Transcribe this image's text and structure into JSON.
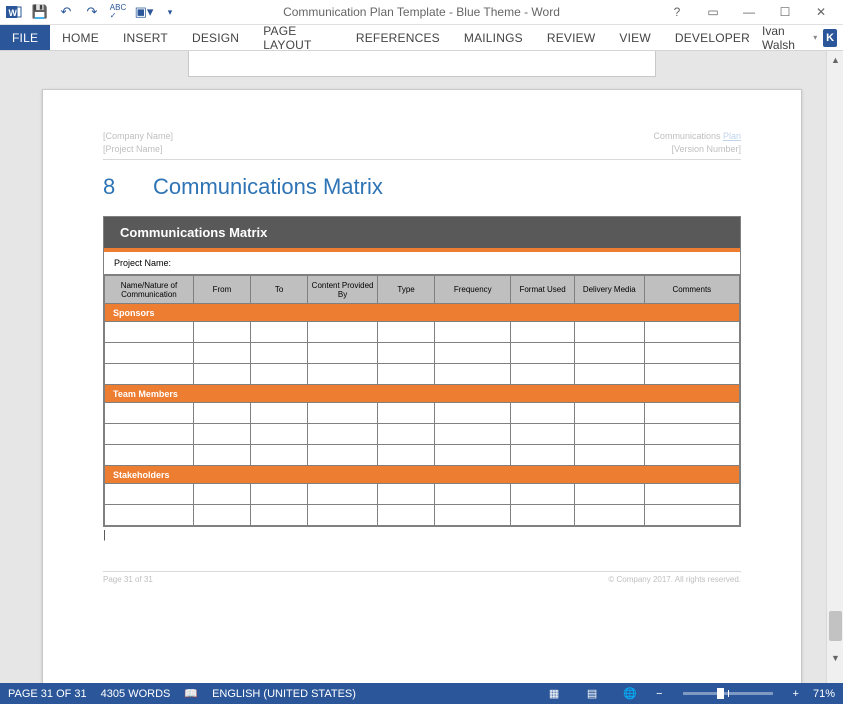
{
  "titleBar": {
    "appTitle": "Communication Plan Template - Blue Theme - Word"
  },
  "ribbonTabs": {
    "file": "FILE",
    "tabs": [
      "HOME",
      "INSERT",
      "DESIGN",
      "PAGE LAYOUT",
      "REFERENCES",
      "MAILINGS",
      "REVIEW",
      "VIEW",
      "DEVELOPER"
    ],
    "user": "Ivan Walsh",
    "userInitial": "K"
  },
  "docHeader": {
    "companyName": "[Company Name]",
    "projectName": "[Project Name]",
    "commPlanLabel": "Communications",
    "commPlanLink": "Plan",
    "versionNumber": "[Version Number]"
  },
  "section": {
    "number": "8",
    "title": "Communications Matrix"
  },
  "matrix": {
    "title": "Communications Matrix",
    "projectLabel": "Project Name:",
    "columns": [
      "Name/Nature of Communication",
      "From",
      "To",
      "Content Provided By",
      "Type",
      "Frequency",
      "Format Used",
      "Delivery Media",
      "Comments"
    ],
    "colWidths": [
      "14%",
      "9%",
      "9%",
      "11%",
      "9%",
      "12%",
      "10%",
      "11%",
      "15%"
    ],
    "sections": [
      {
        "label": "Sponsors",
        "emptyRows": 3
      },
      {
        "label": "Team Members",
        "emptyRows": 3
      },
      {
        "label": "Stakeholders",
        "emptyRows": 2
      }
    ],
    "colors": {
      "titleBg": "#595959",
      "accent": "#ed7d31",
      "headerBg": "#bfbfbf",
      "border": "#808080"
    }
  },
  "pageFooter": {
    "pageLabel": "Page 31 of 31",
    "copyright": "© Company 2017. All rights reserved."
  },
  "statusBar": {
    "page": "PAGE 31 OF 31",
    "words": "4305 WORDS",
    "language": "ENGLISH (UNITED STATES)",
    "zoom": "71%"
  }
}
